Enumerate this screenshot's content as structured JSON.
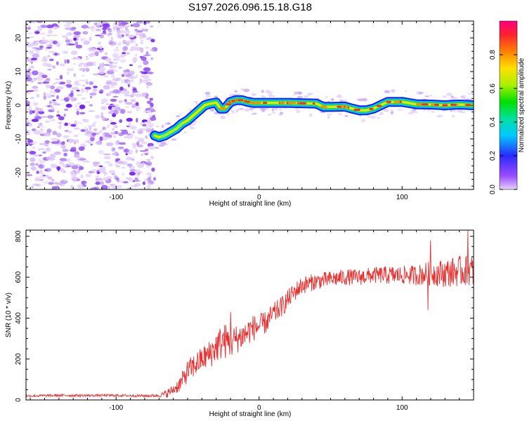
{
  "title": "S197.2026.096.15.18.G18",
  "colors": {
    "axes": "#000000",
    "ridge_low": "#1a1aff",
    "noise": "#7a2cf0",
    "snr_line": "#e53030"
  },
  "chart_data": [
    {
      "type": "heatmap",
      "name": "spectrogram",
      "xlabel": "Height of straight line (km)",
      "ylabel": "Frequency (Hz)",
      "xlim": [
        -163,
        150
      ],
      "ylim": [
        -25,
        25
      ],
      "x_ticks": [
        -100,
        0,
        100
      ],
      "y_ticks": [
        -20,
        -10,
        0,
        10,
        20
      ],
      "noise_region": [
        -163,
        -73
      ],
      "ridge_start": -73,
      "ridge": {
        "x": [
          -73,
          -70,
          -66,
          -62,
          -58,
          -54,
          -50,
          -46,
          -42,
          -38,
          -34,
          -30,
          -27,
          -24,
          -20,
          -16,
          -12,
          -8,
          -4,
          0,
          10,
          20,
          30,
          40,
          45,
          50,
          60,
          65,
          70,
          75,
          80,
          85,
          90,
          95,
          100,
          110,
          120,
          130,
          140,
          150
        ],
        "y": [
          -9,
          -9.5,
          -9,
          -8,
          -7,
          -5.5,
          -4.5,
          -3,
          -1.5,
          0,
          0.5,
          0.8,
          -1,
          -1,
          1,
          1.5,
          1.5,
          1,
          0.7,
          0.7,
          0.7,
          0.7,
          0.6,
          0.5,
          -0.5,
          -0.5,
          -0.4,
          -1,
          -1.5,
          -1.5,
          -1,
          0,
          1,
          1,
          1,
          0.3,
          0.2,
          0,
          0.2,
          0
        ]
      },
      "colorbar": {
        "label": "Normalized spectral amplitude",
        "range": [
          0,
          1
        ],
        "ticks": [
          "0.0",
          "0.2",
          "0.4",
          "0.6",
          "0.8"
        ]
      }
    },
    {
      "type": "line",
      "name": "snr",
      "xlabel": "Height of straight line (km)",
      "ylabel": "SNR (10 * v/v)",
      "xlim": [
        -163,
        150
      ],
      "ylim": [
        0,
        830
      ],
      "x_ticks": [
        -100,
        0,
        100
      ],
      "y_ticks": [
        0,
        200,
        400,
        600,
        800
      ],
      "series": [
        {
          "name": "SNR",
          "x": [
            -163,
            -140,
            -120,
            -100,
            -80,
            -70,
            -65,
            -60,
            -55,
            -50,
            -45,
            -40,
            -35,
            -30,
            -25,
            -20,
            -15,
            -10,
            -5,
            0,
            5,
            10,
            15,
            20,
            25,
            30,
            40,
            50,
            60,
            70,
            80,
            90,
            100,
            110,
            120,
            130,
            140,
            150
          ],
          "y": [
            20,
            22,
            22,
            22,
            20,
            22,
            30,
            50,
            80,
            140,
            170,
            200,
            220,
            260,
            290,
            280,
            300,
            320,
            350,
            360,
            380,
            420,
            450,
            490,
            530,
            560,
            580,
            590,
            600,
            600,
            610,
            610,
            610,
            610,
            620,
            620,
            630,
            630
          ],
          "noise_amplitude": [
            6,
            6,
            6,
            6,
            6,
            8,
            20,
            25,
            40,
            55,
            60,
            60,
            70,
            80,
            90,
            80,
            70,
            70,
            65,
            60,
            55,
            55,
            50,
            50,
            45,
            45,
            40,
            40,
            40,
            40,
            40,
            45,
            45,
            50,
            60,
            70,
            75,
            80
          ],
          "spikes": [
            {
              "x": 146,
              "y": 830
            },
            {
              "x": 120,
              "y": 780
            },
            {
              "x": -20,
              "y": 430
            },
            {
              "x": 118,
              "y": 440
            }
          ]
        }
      ]
    }
  ]
}
